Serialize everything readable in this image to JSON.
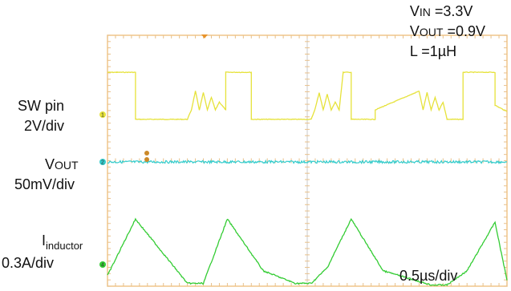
{
  "conditions": {
    "vin_prefix": "V",
    "vin_sub": "IN",
    "vin_value": " =3.3V",
    "vout_prefix": "V",
    "vout_sub": "OUT",
    "vout_value": " =0.9V",
    "inductance": "L =1µH"
  },
  "channels": {
    "sw": {
      "name": "SW pin",
      "scale": "2V/div",
      "color": "#e6e23a",
      "marker": "1"
    },
    "vout": {
      "name_prefix": "V",
      "name_sub": "OUT",
      "scale": "50mV/div",
      "color": "#33cccc",
      "marker": "2"
    },
    "inductor": {
      "name_prefix": "I",
      "name_sub": "inductor",
      "scale": "0.3A/div",
      "color": "#33cc33",
      "marker": "4"
    }
  },
  "timebase": "0.5µs/div",
  "chart_data": {
    "type": "line",
    "title": "",
    "x_unit": "µs",
    "xlim": [
      0,
      5
    ],
    "x_divisions": 10,
    "y_divisions": 8,
    "grid": "center crosshair and border ticks",
    "series": [
      {
        "name": "SW pin",
        "y_unit": "div",
        "x": [
          0,
          0.12,
          0.12,
          0.35,
          0.35,
          1.0,
          1.05,
          1.1,
          1.15,
          1.2,
          1.25,
          1.3,
          1.35,
          1.4,
          1.48,
          1.48,
          1.8,
          1.8,
          2.4,
          2.55,
          2.6,
          2.65,
          2.7,
          2.75,
          2.8,
          2.85,
          2.9,
          2.95,
          3.0,
          3.05,
          3.05,
          3.35,
          3.35,
          3.9,
          3.95,
          4.0,
          4.05,
          4.1,
          4.15,
          4.2,
          4.25,
          4.3,
          4.35,
          4.45,
          4.45,
          4.85,
          4.85,
          5.0
        ],
        "y": [
          1.35,
          1.35,
          1.35,
          1.35,
          -0.15,
          -0.15,
          0.15,
          0.75,
          0.15,
          0.7,
          0.15,
          0.55,
          0.15,
          0.4,
          0.15,
          1.35,
          1.35,
          -0.15,
          -0.15,
          -0.15,
          0.2,
          0.7,
          0.15,
          0.65,
          0.15,
          0.4,
          0.15,
          1.35,
          1.35,
          1.35,
          -0.15,
          -0.15,
          0.15,
          0.75,
          0.15,
          0.7,
          0.15,
          0.55,
          0.15,
          0.4,
          -0.15,
          -0.15,
          -0.15,
          -0.15,
          1.35,
          1.35,
          0.3,
          0.1
        ]
      },
      {
        "name": "VOUT",
        "y_unit": "div",
        "x": [
          0,
          5
        ],
        "y": [
          0,
          0
        ]
      },
      {
        "name": "Iinductor",
        "y_unit": "div",
        "x": [
          0,
          0.35,
          1.0,
          1.2,
          1.5,
          1.95,
          2.35,
          2.55,
          2.75,
          3.05,
          3.45,
          4.05,
          4.25,
          4.5,
          4.85,
          5.0
        ],
        "y": [
          -0.35,
          1.45,
          -0.6,
          -0.6,
          1.45,
          -0.2,
          -0.6,
          -0.6,
          -0.1,
          1.45,
          -0.2,
          -0.65,
          -0.65,
          -0.2,
          1.35,
          -0.5
        ]
      }
    ]
  }
}
